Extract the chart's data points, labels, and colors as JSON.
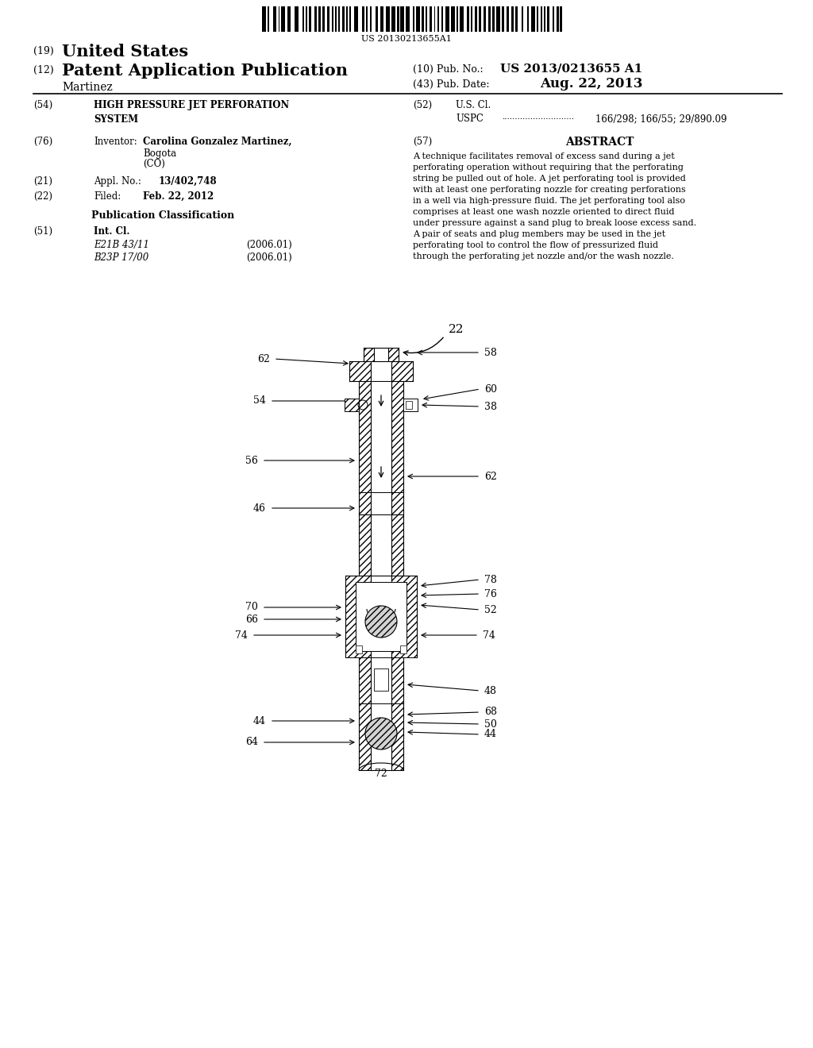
{
  "bg_color": "#ffffff",
  "barcode_text": "US 20130213655A1",
  "header_19_num": "(19)",
  "header_19_text": "United States",
  "header_12_num": "(12)",
  "header_12_text": "Patent Application Publication",
  "pub_no_label": "(10) Pub. No.:",
  "pub_no_value": "US 2013/0213655 A1",
  "pub_date_label": "(43) Pub. Date:",
  "pub_date_value": "Aug. 22, 2013",
  "inventor_last": "Martinez",
  "f54_num": "(54)",
  "f54_text": "HIGH PRESSURE JET PERFORATION\nSYSTEM",
  "f52_num": "(52)",
  "f52_text": "U.S. Cl.",
  "f52_uspc": "USPC",
  "f52_dots": "............................",
  "f52_codes": "166/298; 166/55; 29/890.09",
  "f76_num": "(76)",
  "f76_label": "Inventor:",
  "f76_name": "Carolina Gonzalez Martinez,",
  "f76_city": "Bogota",
  "f76_country": "(CO)",
  "f57_num": "(57)",
  "f57_title": "ABSTRACT",
  "f57_text": "A technique facilitates removal of excess sand during a jet\nperforating operation without requiring that the perforating\nstring be pulled out of hole. A jet perforating tool is provided\nwith at least one perforating nozzle for creating perforations\nin a well via high-pressure fluid. The jet perforating tool also\ncomprises at least one wash nozzle oriented to direct fluid\nunder pressure against a sand plug to break loose excess sand.\nA pair of seats and plug members may be used in the jet\nperforating tool to control the flow of pressurized fluid\nthrough the perforating jet nozzle and/or the wash nozzle.",
  "f21_num": "(21)",
  "f21_label": "Appl. No.:",
  "f21_value": "13/402,748",
  "f22_num": "(22)",
  "f22_label": "Filed:",
  "f22_value": "Feb. 22, 2012",
  "pub_class": "Publication Classification",
  "f51_num": "(51)",
  "f51_label": "Int. Cl.",
  "f51_c1": "E21B 43/11",
  "f51_d1": "(2006.01)",
  "f51_c2": "B23P 17/00",
  "f51_d2": "(2006.01)"
}
